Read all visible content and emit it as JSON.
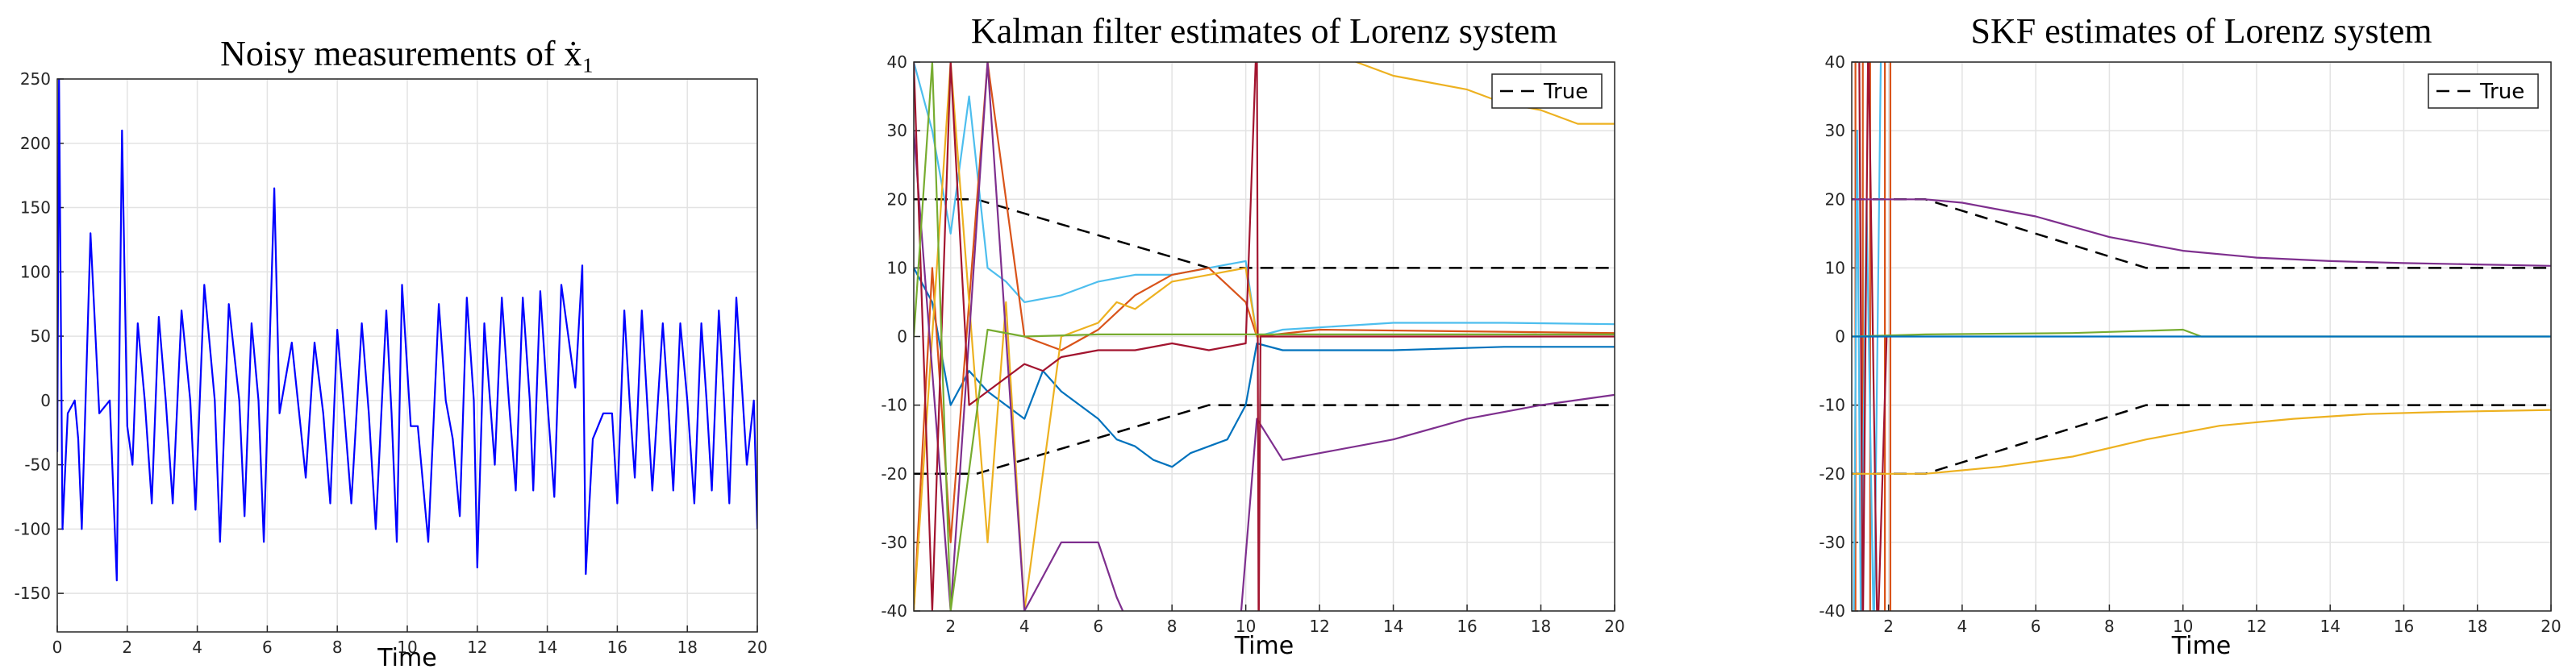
{
  "chart_data": [
    {
      "type": "line",
      "title": "Noisy measurements of ẋ₁",
      "xlabel": "Time",
      "xlim": [
        0,
        20
      ],
      "ylim": [
        -180,
        250
      ],
      "xticks": [
        0,
        2,
        4,
        6,
        8,
        10,
        12,
        14,
        16,
        18,
        20
      ],
      "yticks": [
        -150,
        -100,
        -50,
        0,
        50,
        100,
        150,
        200,
        250
      ],
      "grid": true,
      "series": [
        {
          "color": "#0000ff",
          "x": [
            0,
            0.05,
            0.15,
            0.3,
            0.5,
            0.6,
            0.7,
            0.95,
            1.2,
            1.5,
            1.7,
            1.85,
            2.0,
            2.15,
            2.3,
            2.5,
            2.7,
            2.9,
            3.1,
            3.3,
            3.55,
            3.8,
            3.95,
            4.2,
            4.5,
            4.65,
            4.9,
            5.2,
            5.35,
            5.55,
            5.75,
            5.9,
            6.2,
            6.35,
            6.7,
            6.95,
            7.1,
            7.35,
            7.6,
            7.8,
            8.0,
            8.2,
            8.4,
            8.7,
            8.9,
            9.1,
            9.4,
            9.55,
            9.7,
            9.85,
            10.1,
            10.3,
            10.6,
            10.9,
            11.1,
            11.3,
            11.5,
            11.7,
            11.9,
            12.0,
            12.2,
            12.5,
            12.7,
            12.9,
            13.1,
            13.3,
            13.5,
            13.6,
            13.8,
            14.0,
            14.2,
            14.4,
            14.8,
            15.0,
            15.1,
            15.3,
            15.6,
            15.85,
            16.0,
            16.2,
            16.35,
            16.5,
            16.7,
            16.85,
            17.0,
            17.3,
            17.45,
            17.6,
            17.8,
            18.0,
            18.2,
            18.4,
            18.55,
            18.7,
            18.9,
            19.05,
            19.2,
            19.4,
            19.7,
            19.9,
            20.0
          ],
          "values": [
            -40,
            250,
            -100,
            -10,
            0,
            -30,
            -100,
            130,
            -10,
            0,
            -140,
            210,
            -20,
            -50,
            60,
            0,
            -80,
            65,
            0,
            -80,
            70,
            0,
            -85,
            90,
            0,
            -110,
            75,
            0,
            -90,
            60,
            0,
            -110,
            165,
            -10,
            45,
            -20,
            -60,
            45,
            -10,
            -80,
            55,
            -10,
            -80,
            60,
            -10,
            -100,
            70,
            -10,
            -110,
            90,
            -20,
            -20,
            -110,
            75,
            0,
            -30,
            -90,
            80,
            0,
            -130,
            60,
            -50,
            80,
            0,
            -70,
            80,
            0,
            -70,
            85,
            0,
            -75,
            90,
            10,
            105,
            -135,
            -30,
            -10,
            -10,
            -80,
            70,
            0,
            -60,
            70,
            0,
            -70,
            60,
            0,
            -70,
            60,
            0,
            -80,
            60,
            0,
            -70,
            70,
            0,
            -80,
            80,
            -50,
            0,
            -100
          ]
        }
      ]
    },
    {
      "type": "line",
      "title": "Kalman filter estimates of Lorenz system",
      "xlabel": "Time",
      "xlim": [
        1,
        20
      ],
      "ylim": [
        -40,
        40
      ],
      "xticks": [
        2,
        4,
        6,
        8,
        10,
        12,
        14,
        16,
        18,
        20
      ],
      "yticks": [
        -40,
        -30,
        -20,
        -10,
        0,
        10,
        20,
        30,
        40
      ],
      "grid": true,
      "legend": "upper-right",
      "series": [
        {
          "name": "True",
          "color": "#000000",
          "dash": true,
          "x": [
            1,
            2.7,
            9,
            20,
            null,
            1,
            2.7,
            9,
            20
          ],
          "values": [
            20,
            20,
            10,
            10,
            null,
            -20,
            -20,
            -10,
            -10
          ]
        },
        {
          "color": "#0072bd",
          "x": [
            1,
            1.5,
            2,
            2.5,
            3,
            3.5,
            4,
            4.5,
            5,
            5.5,
            6,
            6.5,
            7,
            7.5,
            8,
            8.5,
            9,
            9.5,
            10,
            10.3,
            11,
            14,
            17,
            20
          ],
          "values": [
            10,
            5,
            -10,
            -5,
            -8,
            -10,
            -12,
            -5,
            -8,
            -10,
            -12,
            -15,
            -16,
            -18,
            -19,
            -17,
            -16,
            -15,
            -10,
            -1,
            -2,
            -2,
            -1.5,
            -1.5
          ]
        },
        {
          "color": "#4dbeee",
          "x": [
            1,
            1.5,
            2,
            2.5,
            3,
            3.5,
            4,
            5,
            6,
            7,
            8,
            9,
            10,
            10.3,
            11,
            14,
            17,
            20
          ],
          "values": [
            40,
            30,
            15,
            35,
            10,
            8,
            5,
            6,
            8,
            9,
            9,
            10,
            11,
            0,
            1,
            2,
            2,
            1.8
          ]
        },
        {
          "color": "#d95319",
          "x": [
            1,
            1.5,
            2,
            3,
            4,
            5,
            6,
            7,
            8,
            9,
            10,
            10.3,
            12,
            20
          ],
          "values": [
            -40,
            10,
            -30,
            40,
            0,
            -2,
            1,
            6,
            9,
            10,
            5,
            0,
            1,
            0.5
          ]
        },
        {
          "color": "#edb120",
          "x": [
            1,
            2,
            3,
            3.5,
            4,
            5,
            6,
            6.5,
            7,
            8,
            9,
            10,
            10.3,
            10.4,
            10.4,
            12.5,
            13,
            14,
            15,
            16,
            17,
            18,
            19,
            20
          ],
          "values": [
            -40,
            40,
            -30,
            5,
            -40,
            0,
            2,
            5,
            4,
            8,
            9,
            10,
            0,
            0,
            null,
            41,
            40,
            38,
            37,
            36,
            34,
            33,
            31,
            31
          ]
        },
        {
          "color": "#7e2f8e",
          "x": [
            1,
            2,
            3,
            4,
            4.5,
            5,
            6,
            6.5,
            7,
            9.8,
            10.3,
            11,
            12,
            14,
            16,
            18,
            20
          ],
          "values": [
            30,
            -40,
            40,
            -40,
            -35,
            -30,
            -30,
            -38,
            -44,
            -45,
            -12,
            -18,
            -17,
            -15,
            -12,
            -10,
            -8.5
          ]
        },
        {
          "color": "#a2142f",
          "x": [
            1,
            1.5,
            2,
            2.5,
            3,
            3.5,
            4,
            4.5,
            5,
            6,
            7,
            8,
            9,
            10,
            10.3,
            10.35,
            10.4,
            12,
            20
          ],
          "values": [
            40,
            -40,
            40,
            -10,
            -8,
            -6,
            -4,
            -5,
            -3,
            -2,
            -2,
            -1,
            -2,
            -1,
            45,
            -45,
            0,
            0,
            0
          ]
        },
        {
          "color": "#77ac30",
          "x": [
            1,
            1.5,
            2,
            3,
            4,
            6,
            10,
            20
          ],
          "values": [
            0,
            40,
            -40,
            1,
            0,
            0.3,
            0.3,
            0.3
          ]
        }
      ]
    },
    {
      "type": "line",
      "title": "SKF estimates of Lorenz system",
      "xlabel": "Time",
      "xlim": [
        1,
        20
      ],
      "ylim": [
        -40,
        40
      ],
      "xticks": [
        2,
        4,
        6,
        8,
        10,
        12,
        14,
        16,
        18,
        20
      ],
      "yticks": [
        -40,
        -30,
        -20,
        -10,
        0,
        10,
        20,
        30,
        40
      ],
      "grid": true,
      "legend": "upper-right",
      "series": [
        {
          "name": "True",
          "color": "#000000",
          "dash": true,
          "x": [
            1,
            3,
            9,
            20,
            null,
            1,
            3,
            9,
            20
          ],
          "values": [
            20,
            20,
            10,
            10,
            null,
            -20,
            -20,
            -10,
            -10
          ]
        },
        {
          "color": "#d95319",
          "x": [
            1.1,
            1.1,
            1.3,
            1.3,
            1.5,
            1.5,
            1.9,
            1.9,
            2.05,
            2.05
          ],
          "values": [
            45,
            -45,
            -45,
            45,
            45,
            -45,
            -45,
            45,
            45,
            -45
          ]
        },
        {
          "color": "#4dbeee",
          "x": [
            1.05,
            1.15,
            1.25,
            1.4,
            1.6,
            1.8
          ],
          "values": [
            -45,
            30,
            -45,
            20,
            -45,
            45
          ]
        },
        {
          "color": "#a2142f",
          "x": [
            1.2,
            1.3,
            1.45,
            1.7,
            1.95
          ],
          "values": [
            45,
            -45,
            45,
            -45,
            0
          ]
        },
        {
          "color": "#7e2f8e",
          "x": [
            1,
            1.5,
            3,
            4,
            5,
            6,
            7,
            8,
            9,
            10,
            12,
            14,
            16,
            18,
            20
          ],
          "values": [
            20,
            20,
            20,
            19.5,
            18.5,
            17.5,
            16,
            14.5,
            13.5,
            12.5,
            11.5,
            11,
            10.7,
            10.5,
            10.3
          ]
        },
        {
          "color": "#edb120",
          "x": [
            1,
            1.5,
            3,
            5,
            7,
            9,
            11,
            13,
            15,
            17,
            20
          ],
          "values": [
            -20,
            -20,
            -20,
            -19,
            -17.5,
            -15,
            -13,
            -12,
            -11.3,
            -11,
            -10.7
          ]
        },
        {
          "color": "#77ac30",
          "x": [
            1,
            3,
            7,
            10,
            10.5,
            20
          ],
          "values": [
            0,
            0.3,
            0.5,
            1,
            0,
            0
          ]
        },
        {
          "color": "#0072bd",
          "x": [
            1,
            2,
            5,
            10,
            20
          ],
          "values": [
            0,
            0,
            0,
            0,
            0
          ]
        }
      ]
    }
  ]
}
